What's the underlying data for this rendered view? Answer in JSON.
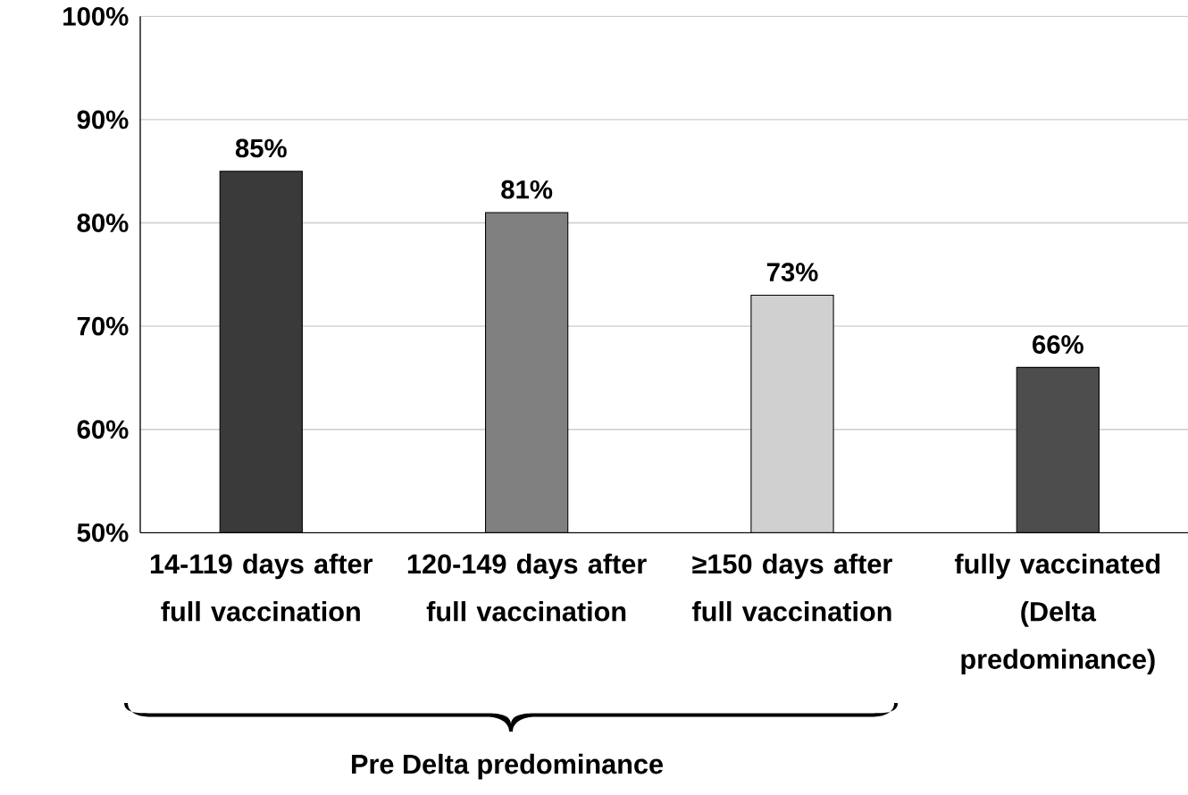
{
  "chart_data": {
    "type": "bar",
    "categories": [
      "14-119 days after full vaccination",
      "120-149 days after full vaccination",
      "≥150 days after full vaccination",
      "fully vaccinated (Delta predominance)"
    ],
    "values": [
      85,
      81,
      73,
      66
    ],
    "colors": [
      "#3a3a3a",
      "#808080",
      "#d0d0d0",
      "#4d4d4d"
    ],
    "value_labels": [
      "85%",
      "81%",
      "73%",
      "66%"
    ],
    "ylim": [
      50,
      100
    ],
    "yticks": [
      {
        "value": 50,
        "label": "50%"
      },
      {
        "value": 60,
        "label": "60%"
      },
      {
        "value": 70,
        "label": "70%"
      },
      {
        "value": 80,
        "label": "80%"
      },
      {
        "value": 90,
        "label": "90%"
      },
      {
        "value": 100,
        "label": "100%"
      }
    ],
    "grid": "y",
    "annotations": [
      "Pre Delta predominance"
    ]
  }
}
